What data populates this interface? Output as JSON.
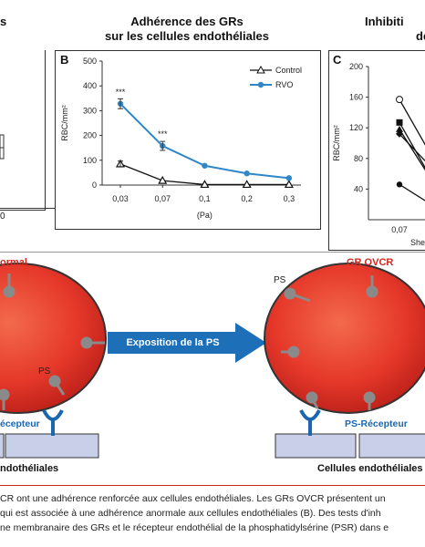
{
  "titles": {
    "left_partial": "s",
    "middle_line1": "Adhérence des GRs",
    "middle_line2": "sur les cellules endothéliales",
    "right_line1": "Inhibiti",
    "right_line2": "de"
  },
  "panels": {
    "a_partial_label": "0",
    "b_label": "B",
    "c_label": "C"
  },
  "chart_data": [
    {
      "type": "line",
      "panel": "B",
      "ylabel": "RBC/mm²",
      "xlabel": "(Pa)",
      "categories": [
        "0,03",
        "0,07",
        "0,1",
        "0,2",
        "0,3"
      ],
      "yticks": [
        "0",
        "100",
        "200",
        "300",
        "400",
        "500"
      ],
      "ylim": [
        0,
        500
      ],
      "series": [
        {
          "name": "Control",
          "values": [
            85,
            18,
            2,
            2,
            2
          ],
          "color": "#111111",
          "marker": "triangle-open"
        },
        {
          "name": "RVO",
          "values": [
            328,
            158,
            78,
            47,
            28
          ],
          "color": "#2f87c8",
          "marker": "circle-filled"
        }
      ],
      "annotations": [
        "***",
        "***"
      ],
      "legend": "top-right"
    },
    {
      "type": "line",
      "panel": "C",
      "ylabel": "RBC/mm²",
      "xlabel": "She",
      "categories": [
        "0,07"
      ],
      "yticks": [
        "40",
        "80",
        "120",
        "160",
        "200"
      ],
      "ylim": [
        0,
        200
      ],
      "series_start_values": [
        157,
        127,
        118,
        112,
        46
      ]
    }
  ],
  "diagram": {
    "left_cell_label": "ormal",
    "left_ps_label": "PS",
    "left_receptor_label": "écepteur",
    "left_endo_label": "ndothéliales",
    "arrow_label": "Exposition de la PS",
    "right_cell_label": "GR OVCR",
    "right_ps_label": "PS",
    "right_receptor_label": "PS-Récepteur",
    "right_endo_label": "Cellules endothéliales"
  },
  "caption": {
    "line1": "CR ont une adhérence renforcée aux cellules endothéliales. Les GRs OVCR présentent un",
    "line2": "qui est associée à une adhérence anormale aux cellules endothéliales (B). Des tests d'inh",
    "line3": "ne membranaire des GRs et le récepteur endothélial de la phosphatidylsérine (PSR) dans e"
  },
  "colors": {
    "rvo": "#2f87c8",
    "control": "#111111",
    "cell_red": "#e53a2b",
    "arrow_blue": "#1d6fb8",
    "endo_fill": "#c9cfe8",
    "title_red": "#d7261e",
    "receptor_blue": "#1a67b0"
  }
}
